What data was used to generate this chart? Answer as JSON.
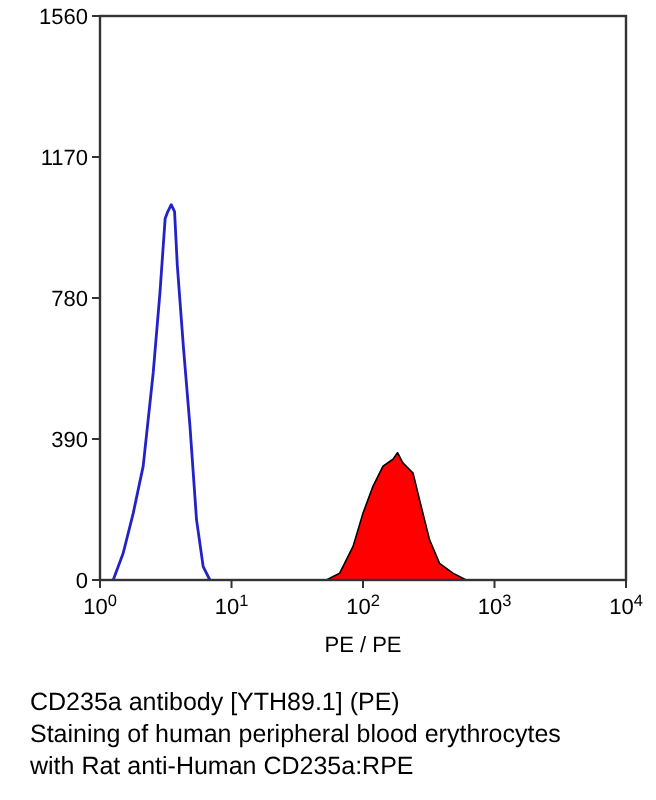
{
  "chart_data": {
    "type": "line",
    "xlabel": "PE / PE",
    "annotations": [
      "CD235a antibody [YTH89.1] (PE)",
      "Staining of human peripheral blood erythrocytes",
      "with Rat anti-Human CD235a:RPE"
    ],
    "log": "x",
    "xlim": [
      1,
      10000
    ],
    "ylim": [
      0,
      1560
    ],
    "xticks": [
      {
        "value": 1,
        "label": "10$^{0}$"
      },
      {
        "value": 10,
        "label": "10$^{1}$"
      },
      {
        "value": 100,
        "label": "10$^{2}$"
      },
      {
        "value": 1000,
        "label": "10$^{3}$"
      },
      {
        "value": 10000,
        "label": "10$^{4}$"
      }
    ],
    "yticks": [
      0,
      390,
      780,
      1170,
      1560
    ],
    "grid": false,
    "series": [
      {
        "color": "#2222c8",
        "x": [
          1.26,
          1.5,
          1.79,
          2.13,
          2.54,
          2.86,
          3.13,
          3.28,
          3.48,
          3.69,
          3.87,
          4.3,
          4.83,
          5.42,
          6.09,
          6.85
        ],
        "values": [
          0,
          74,
          185,
          315,
          574,
          797,
          1000,
          1019,
          1038,
          1019,
          871,
          648,
          426,
          167,
          37,
          0
        ]
      },
      {
        "type": "area",
        "color": "#ff0000",
        "x": [
          52.7,
          66.5,
          84,
          100,
          119,
          142,
          169,
          183,
          201,
          240,
          269,
          321,
          382,
          483,
          609
        ],
        "values": [
          0,
          19,
          93,
          185,
          259,
          315,
          334,
          352,
          324,
          296,
          222,
          111,
          46,
          19,
          0
        ]
      }
    ]
  }
}
